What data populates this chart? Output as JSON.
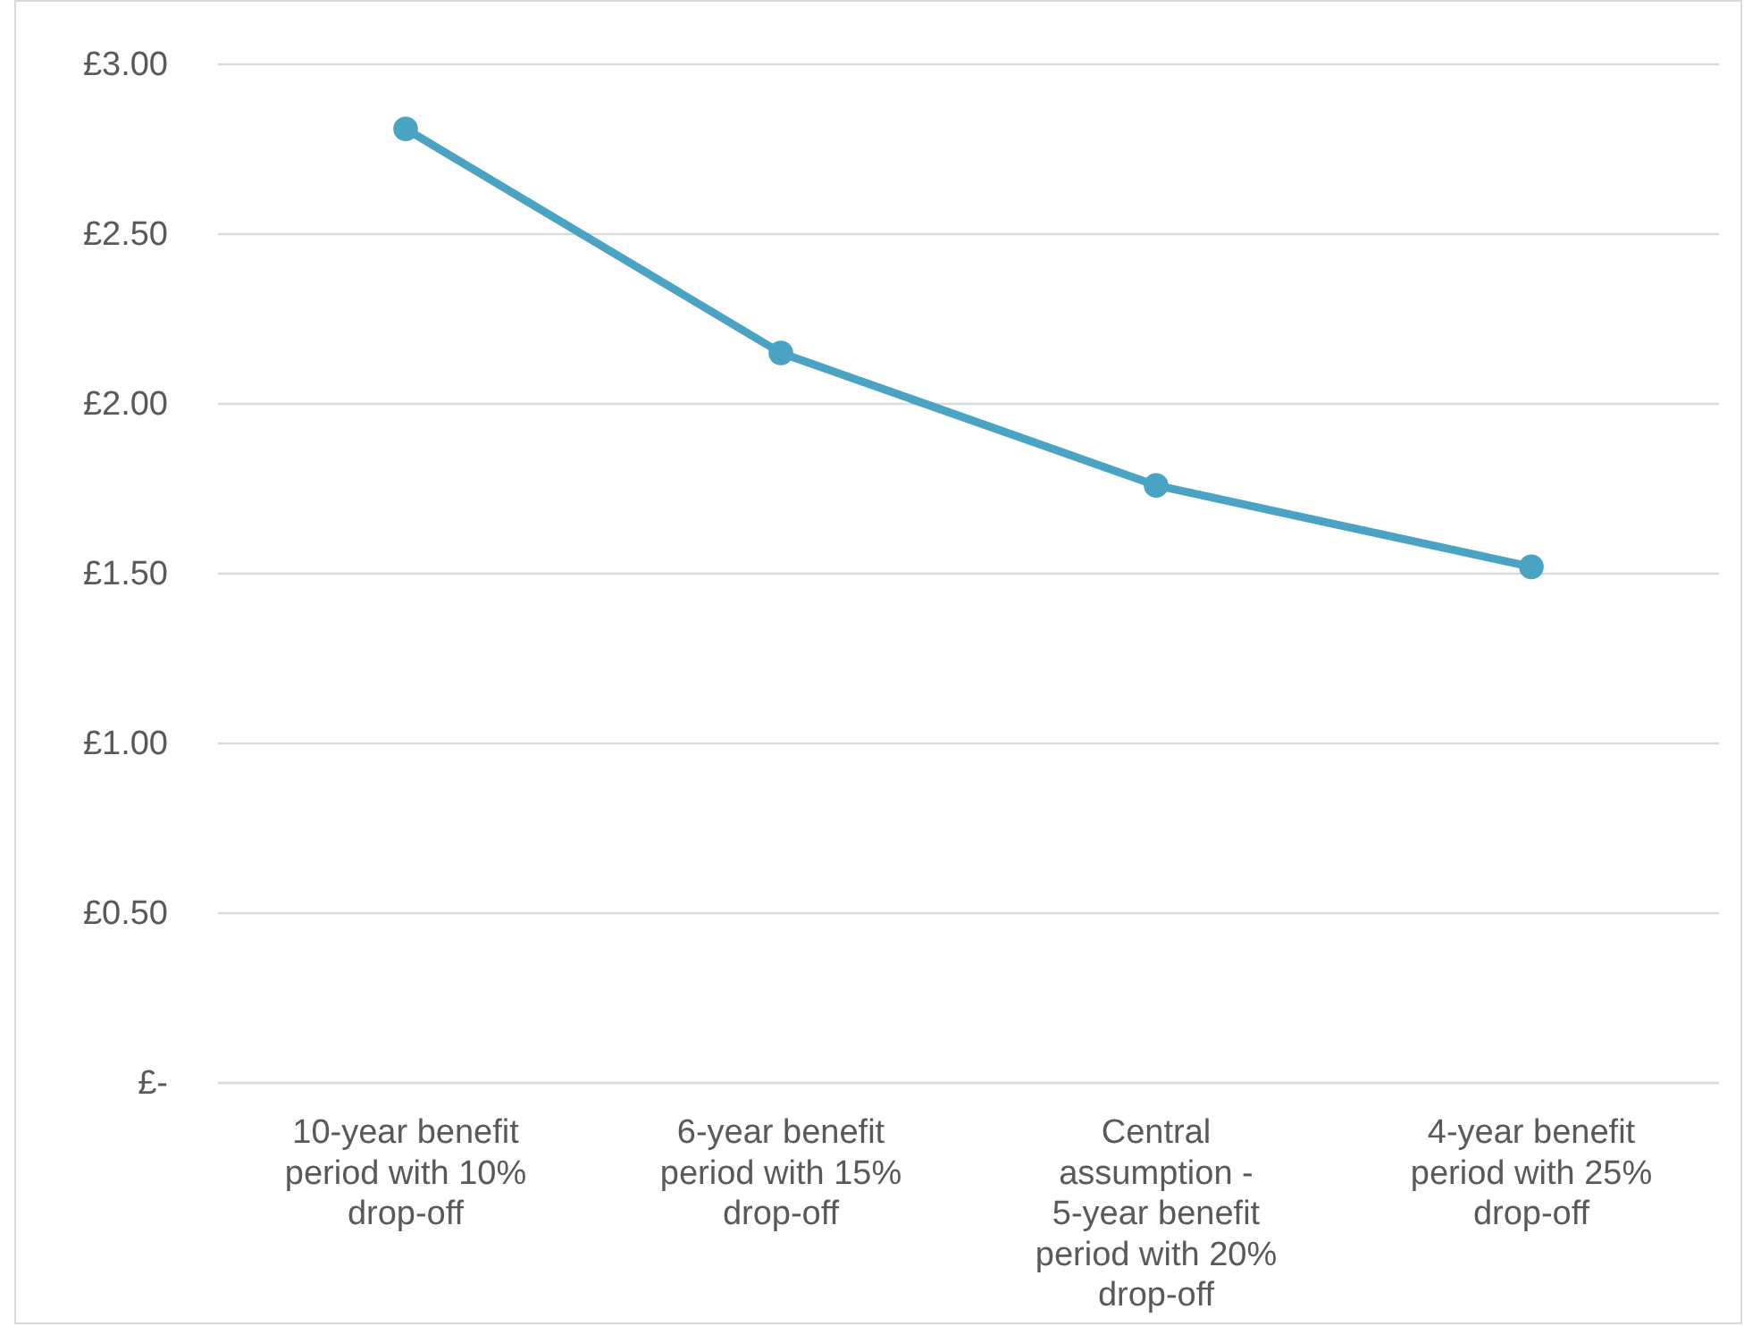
{
  "chart_data": {
    "type": "line",
    "categories": [
      "10-year benefit period with 10% drop-off",
      "6-year benefit period with 15% drop-off",
      "Central assumption - 5-year benefit period with 20% drop-off",
      "4-year benefit period with 25% drop-off"
    ],
    "series": [
      {
        "color": "#4ba3c3",
        "values": [
          2.81,
          2.15,
          1.76,
          1.52
        ]
      }
    ],
    "ylim": [
      0,
      3
    ],
    "yticks": [
      {
        "value": 0,
        "label": "£-"
      },
      {
        "value": 0.5,
        "label": "£0.50"
      },
      {
        "value": 1,
        "label": "£1.00"
      },
      {
        "value": 1.5,
        "label": "£1.50"
      },
      {
        "value": 2,
        "label": "£2.00"
      },
      {
        "value": 2.5,
        "label": "£2.50"
      },
      {
        "value": 3,
        "label": "£3.00"
      }
    ],
    "grid": "y",
    "marker": "circle",
    "line_style": "solid"
  }
}
